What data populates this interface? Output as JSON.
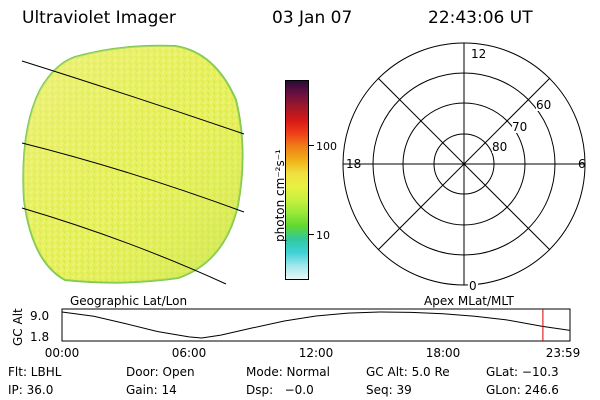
{
  "header": {
    "title": "Ultraviolet Imager",
    "date": "03 Jan 07",
    "time": "22:43:06 UT"
  },
  "colors": {
    "disk_fill": "#e8f05a",
    "disk_edge": "#7ec850",
    "accent_marker": "#d40000"
  },
  "colorbar": {
    "unit_label": "photon cm⁻²s⁻¹",
    "tick_labels": [
      "100",
      "10"
    ],
    "colors": [
      "#2a0a3a",
      "#6b1040",
      "#a01828",
      "#d81818",
      "#f04018",
      "#f08018",
      "#f0b018",
      "#f0e040",
      "#e8f040",
      "#c8f040",
      "#98e838",
      "#60d830",
      "#30c8a0",
      "#40d0d8",
      "#a0e8ec",
      "#e8f8f8"
    ]
  },
  "geo_panel": {
    "label": "Geographic Lat/Lon"
  },
  "polar_panel": {
    "label": "Apex MLat/MLT",
    "mlt_labels": [
      "12",
      "18",
      "6",
      "0"
    ],
    "lat_labels": [
      "60",
      "70",
      "80"
    ]
  },
  "altitude_plot": {
    "axis_label": "GC Alt",
    "y_ticks": [
      "9.0",
      "1.8"
    ],
    "x_ticks": [
      "00:00",
      "06:00",
      "12:00",
      "18:00",
      "23:59"
    ],
    "ylim": [
      1.8,
      9.0
    ],
    "xlim_hours": [
      0,
      24
    ],
    "series": [
      {
        "x": [
          0.0,
          1.5,
          3.0,
          4.5,
          6.0,
          6.6,
          7.5,
          9.0,
          10.5,
          12.0,
          13.5,
          15.0,
          16.5,
          18.0,
          19.5,
          21.0,
          22.7,
          24.0
        ],
        "y": [
          9.0,
          7.8,
          5.8,
          3.6,
          2.1,
          1.8,
          2.6,
          4.6,
          6.5,
          7.9,
          8.7,
          9.0,
          8.9,
          8.5,
          7.8,
          6.8,
          5.0,
          3.9
        ]
      }
    ],
    "marker_time_hours": 22.72
  },
  "footer": {
    "filter": "Flt: LBHL",
    "door": "Door: Open",
    "mode": "Mode: Normal",
    "gc_alt": "GC Alt: 5.0 Re",
    "glat": "GLat: −10.3",
    "ip": "IP: 36.0",
    "gain": "Gain: 14",
    "dsp": "Dsp:   −0.0",
    "seq": "Seq: 39",
    "glon": "GLon: 246.6"
  }
}
